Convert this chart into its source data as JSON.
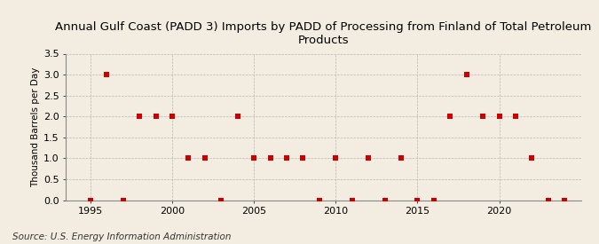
{
  "title": "Annual Gulf Coast (PADD 3) Imports by PADD of Processing from Finland of Total Petroleum\nProducts",
  "ylabel": "Thousand Barrels per Day",
  "source": "Source: U.S. Energy Information Administration",
  "background_color": "#f2ede0",
  "plot_background_color": "#f2ede0",
  "marker_color": "#cc0000",
  "marker_size": 4,
  "xlim": [
    1993.5,
    2025
  ],
  "ylim": [
    0,
    3.5
  ],
  "yticks": [
    0.0,
    0.5,
    1.0,
    1.5,
    2.0,
    2.5,
    3.0,
    3.5
  ],
  "xticks": [
    1995,
    2000,
    2005,
    2010,
    2015,
    2020
  ],
  "years": [
    1995,
    1996,
    1997,
    1998,
    1999,
    2000,
    2001,
    2002,
    2003,
    2004,
    2005,
    2006,
    2007,
    2008,
    2009,
    2010,
    2011,
    2012,
    2013,
    2014,
    2015,
    2016,
    2017,
    2018,
    2019,
    2020,
    2021,
    2022,
    2023,
    2024
  ],
  "values": [
    0,
    3,
    0,
    2,
    2,
    2,
    1,
    1,
    0,
    2,
    1,
    1,
    1,
    1,
    0,
    1,
    0,
    1,
    0,
    1,
    0,
    0,
    2,
    3,
    2,
    2,
    2,
    1,
    0,
    0
  ],
  "grid_color": "#aaaaaa",
  "title_fontsize": 9.5,
  "ylabel_fontsize": 7.5,
  "source_fontsize": 7.5,
  "tick_fontsize": 8
}
